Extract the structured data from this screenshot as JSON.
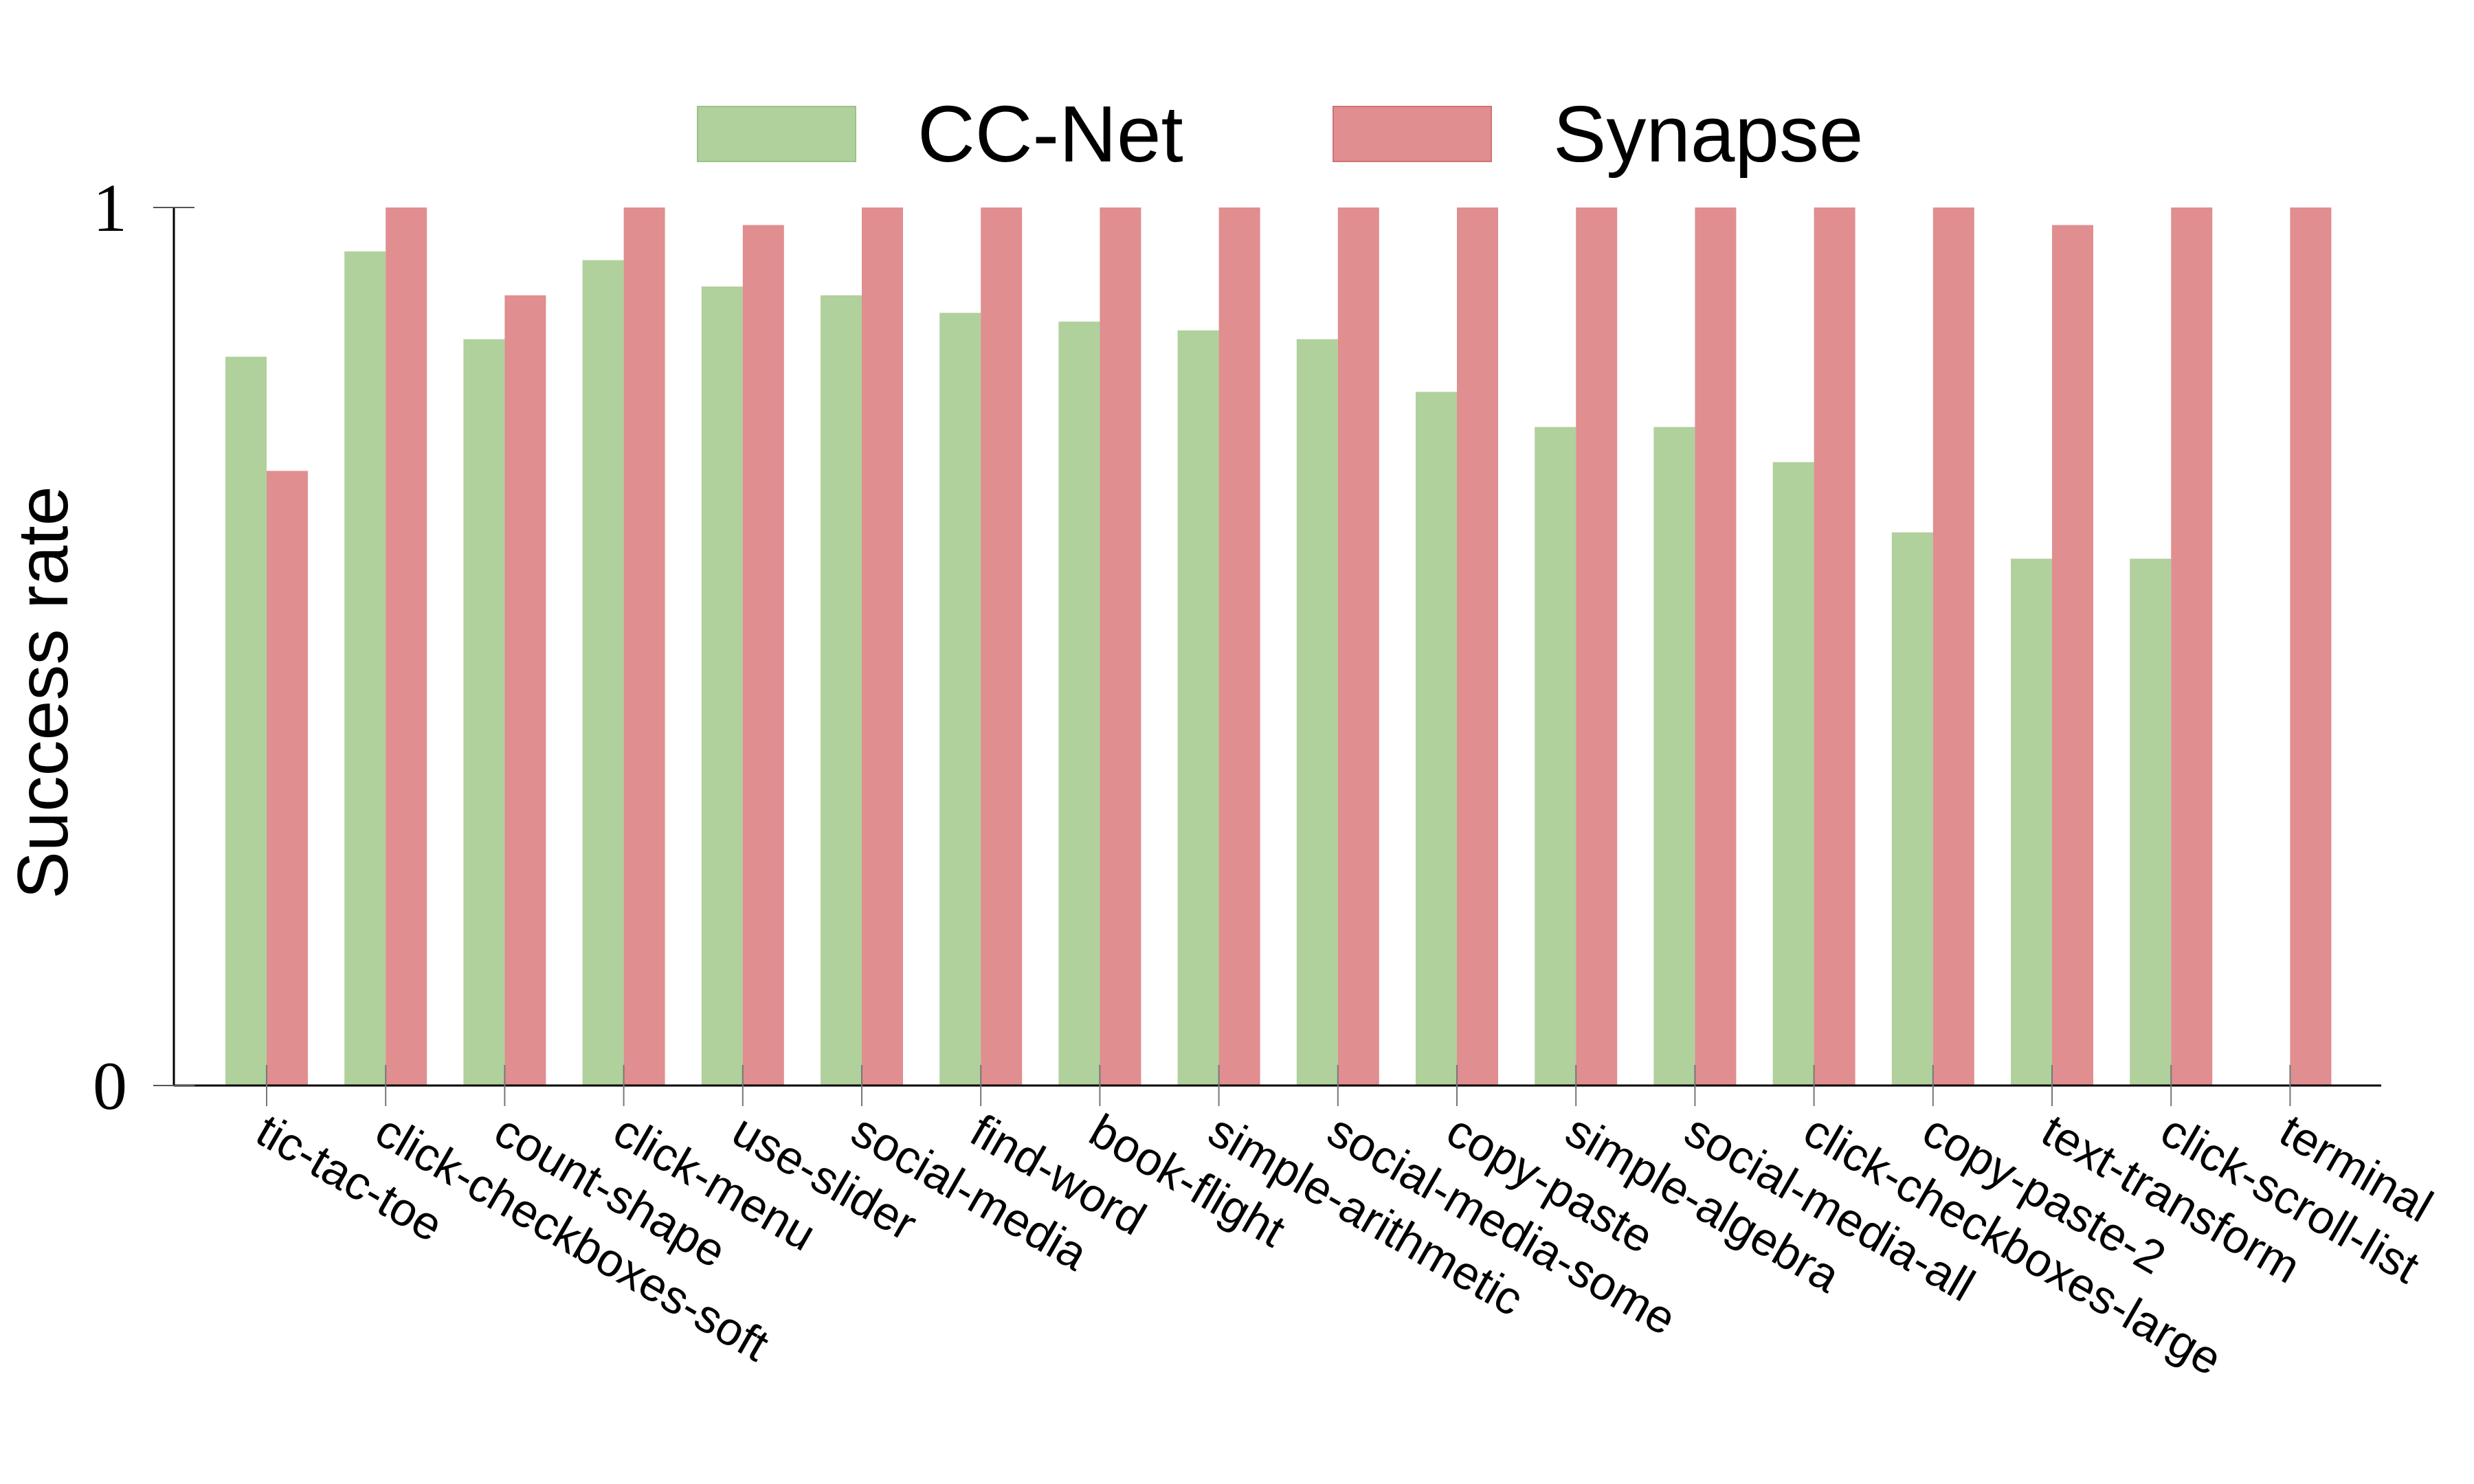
{
  "chart_data": {
    "type": "bar",
    "categories": [
      "tic-tac-toe",
      "click-checkboxes-soft",
      "count-shape",
      "click-menu",
      "use-slider",
      "social-media",
      "find-word",
      "book-flight",
      "simple-arithmetic",
      "social-media-some",
      "copy-paste",
      "simple-algebra",
      "social-media-all",
      "click-checkboxes-large",
      "copy-paste-2",
      "text-transform",
      "click-scroll-list",
      "terminal"
    ],
    "series": [
      {
        "name": "CC-Net",
        "color": "#b0d09c",
        "values": [
          0.83,
          0.95,
          0.85,
          0.94,
          0.91,
          0.9,
          0.88,
          0.87,
          0.86,
          0.85,
          0.79,
          0.75,
          0.75,
          0.71,
          0.63,
          0.6,
          0.6,
          0.0
        ]
      },
      {
        "name": "Synapse",
        "color": "#e08e90",
        "values": [
          0.7,
          1.0,
          0.9,
          1.0,
          0.98,
          1.0,
          1.0,
          1.0,
          1.0,
          1.0,
          1.0,
          1.0,
          1.0,
          1.0,
          1.0,
          0.98,
          1.0,
          1.0
        ]
      }
    ],
    "yticks": [
      {
        "value": 0,
        "label": "0"
      },
      {
        "value": 1,
        "label": "1"
      }
    ],
    "ylim": [
      0,
      1
    ],
    "ylabel": "Success rate",
    "xlabel": "",
    "title": "",
    "grid": false,
    "legend_position": "top-center"
  }
}
